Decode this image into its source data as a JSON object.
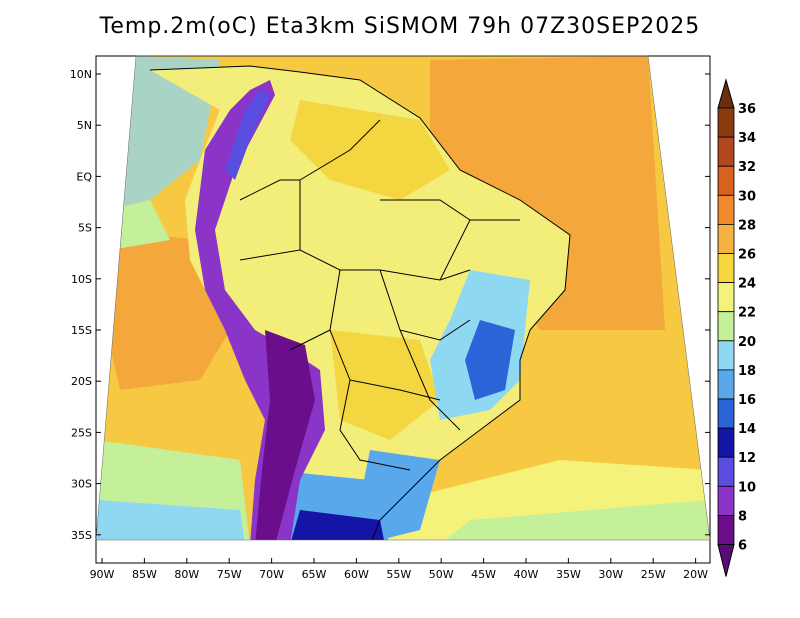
{
  "title": "Temp.2m(oC) Eta3km SiSMOM 79h 07Z30SEP2025",
  "colors": {
    "ocean_warm": "#f4a73b",
    "ocean_mid": "#f7c842",
    "land_base": "#f3ee7a",
    "ocean_cool": "#eef29a",
    "cold_ocean": "#c9f2a6",
    "boundary": "#000000",
    "frame": "#000000"
  },
  "colorbar": {
    "levels": [
      "36",
      "34",
      "32",
      "30",
      "28",
      "26",
      "24",
      "22",
      "20",
      "18",
      "16",
      "14",
      "12",
      "10",
      "8",
      "6"
    ],
    "colors": [
      "#6b2d0e",
      "#8c3a10",
      "#b2461c",
      "#d8611e",
      "#f08a2f",
      "#f4b340",
      "#f8d640",
      "#f4f27a",
      "#c4f09a",
      "#8fd8f2",
      "#5aa8ec",
      "#2a64d6",
      "#1414a6",
      "#5a4ee0",
      "#8a34c8",
      "#6a0e8c"
    ],
    "top_color": "#6b2d0e",
    "bottom_color": "#5a0a7a"
  },
  "lat_labels": [
    "10N",
    "5N",
    "EQ",
    "5S",
    "10S",
    "15S",
    "20S",
    "25S",
    "30S",
    "35S"
  ],
  "lon_labels": [
    "90W",
    "85W",
    "80W",
    "75W",
    "70W",
    "65W",
    "60W",
    "55W",
    "50W",
    "45W",
    "40W",
    "35W",
    "30W",
    "25W",
    "20W"
  ]
}
